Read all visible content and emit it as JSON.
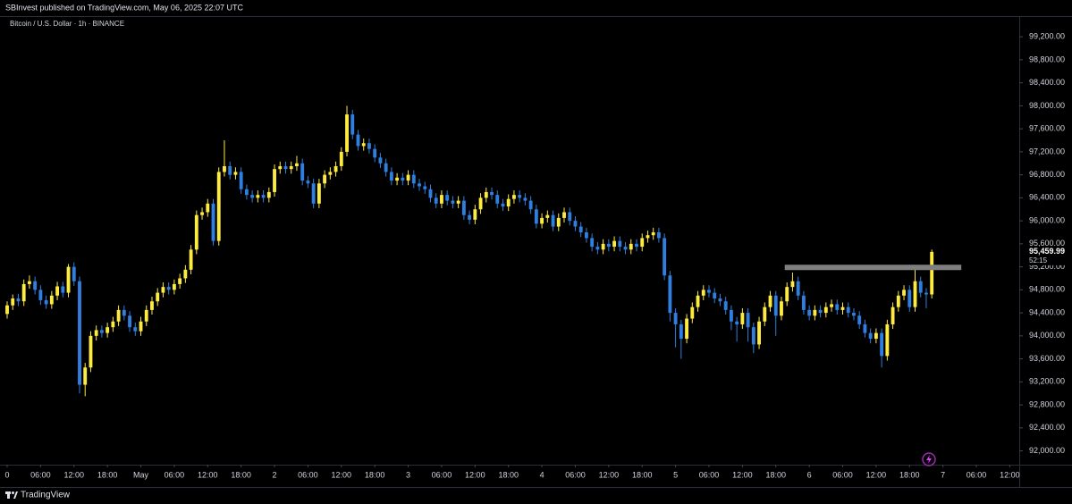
{
  "chart_data": {
    "type": "candlestick",
    "header": "SBInvest published on TradingView.com, May 06, 2025 22:07 UTC",
    "symbol": "Bitcoin / U.S. Dollar · 1h · BINANCE",
    "brand": "TradingView",
    "up_color": "#fdeb3f",
    "down_color": "#2f7fe0",
    "x": [
      0,
      1,
      2,
      3,
      4,
      5,
      6,
      7,
      8,
      9,
      10,
      11,
      12,
      13,
      14,
      15,
      16,
      17,
      18,
      19,
      20,
      21,
      22,
      23,
      24,
      25,
      26,
      27,
      28,
      29,
      30,
      31,
      32,
      33,
      34,
      35,
      36,
      37,
      38,
      39,
      40,
      41,
      42,
      43,
      44,
      45,
      46,
      47,
      48,
      49,
      50,
      51,
      52,
      53,
      54,
      55,
      56,
      57,
      58,
      59,
      60,
      61,
      62,
      63,
      64,
      65,
      66,
      67,
      68,
      69,
      70,
      71,
      72,
      73,
      74,
      75,
      76,
      77,
      78,
      79,
      80,
      81,
      82,
      83,
      84,
      85,
      86,
      87,
      88,
      89,
      90,
      91,
      92,
      93,
      94,
      95,
      96,
      97,
      98,
      99,
      100,
      101,
      102,
      103,
      104,
      105,
      106,
      107,
      108,
      109,
      110,
      111,
      112,
      113,
      114,
      115,
      116,
      117,
      118,
      119,
      120,
      121,
      122,
      123,
      124,
      125,
      126,
      127,
      128,
      129,
      130,
      131,
      132,
      133,
      134,
      135,
      136,
      137,
      138,
      139,
      140,
      141,
      142,
      143,
      144,
      145,
      146,
      147,
      148,
      149,
      150,
      151,
      152,
      153,
      154,
      155,
      156,
      157,
      158,
      159,
      160,
      161,
      162,
      163,
      164,
      165,
      166
    ],
    "ohlc": [
      [
        94380,
        94600,
        94300,
        94530
      ],
      [
        94530,
        94720,
        94450,
        94650
      ],
      [
        94650,
        94730,
        94520,
        94600
      ],
      [
        94600,
        94980,
        94520,
        94900
      ],
      [
        94900,
        95050,
        94820,
        94950
      ],
      [
        94950,
        95030,
        94720,
        94800
      ],
      [
        94800,
        94880,
        94540,
        94620
      ],
      [
        94620,
        94700,
        94470,
        94550
      ],
      [
        94550,
        94780,
        94470,
        94700
      ],
      [
        94700,
        94940,
        94620,
        94860
      ],
      [
        94860,
        94940,
        94670,
        94750
      ],
      [
        94750,
        95250,
        94670,
        95200
      ],
      [
        95200,
        95280,
        94870,
        94950
      ],
      [
        94950,
        95030,
        93000,
        93150
      ],
      [
        93150,
        93530,
        92950,
        93450
      ],
      [
        93450,
        94080,
        93370,
        94000
      ],
      [
        94000,
        94180,
        93920,
        94100
      ],
      [
        94100,
        94180,
        93970,
        94050
      ],
      [
        94050,
        94230,
        93970,
        94150
      ],
      [
        94150,
        94330,
        94070,
        94250
      ],
      [
        94250,
        94530,
        94170,
        94450
      ],
      [
        94450,
        94530,
        94270,
        94350
      ],
      [
        94350,
        94430,
        94070,
        94150
      ],
      [
        94150,
        94230,
        94000,
        94080
      ],
      [
        94080,
        94330,
        94000,
        94250
      ],
      [
        94250,
        94530,
        94170,
        94450
      ],
      [
        94450,
        94680,
        94370,
        94600
      ],
      [
        94600,
        94830,
        94520,
        94750
      ],
      [
        94750,
        94930,
        94670,
        94850
      ],
      [
        94850,
        94930,
        94720,
        94800
      ],
      [
        94800,
        94980,
        94720,
        94900
      ],
      [
        94900,
        95080,
        94820,
        95000
      ],
      [
        95000,
        95230,
        94920,
        95150
      ],
      [
        95150,
        95580,
        95070,
        95500
      ],
      [
        95500,
        96180,
        95420,
        96100
      ],
      [
        96100,
        96230,
        96020,
        96150
      ],
      [
        96150,
        96380,
        96070,
        96300
      ],
      [
        96300,
        96380,
        95570,
        95650
      ],
      [
        95650,
        96930,
        95570,
        96850
      ],
      [
        96850,
        97400,
        96770,
        96950
      ],
      [
        96950,
        97030,
        96720,
        96800
      ],
      [
        96800,
        96930,
        96720,
        96850
      ],
      [
        96850,
        96930,
        96470,
        96550
      ],
      [
        96550,
        96630,
        96370,
        96450
      ],
      [
        96450,
        96530,
        96320,
        96400
      ],
      [
        96400,
        96530,
        96320,
        96450
      ],
      [
        96450,
        96530,
        96320,
        96400
      ],
      [
        96400,
        96580,
        96320,
        96500
      ],
      [
        96500,
        96980,
        96420,
        96900
      ],
      [
        96900,
        97030,
        96820,
        96950
      ],
      [
        96950,
        97030,
        96820,
        96900
      ],
      [
        96900,
        97030,
        96820,
        96950
      ],
      [
        96950,
        97130,
        96870,
        97000
      ],
      [
        97000,
        97080,
        96620,
        96700
      ],
      [
        96700,
        96780,
        96570,
        96650
      ],
      [
        96650,
        96730,
        96220,
        96300
      ],
      [
        96300,
        96730,
        96220,
        96650
      ],
      [
        96650,
        96880,
        96570,
        96800
      ],
      [
        96800,
        96930,
        96720,
        96850
      ],
      [
        96850,
        97030,
        96770,
        96950
      ],
      [
        96950,
        97280,
        96870,
        97200
      ],
      [
        97200,
        98000,
        97120,
        97850
      ],
      [
        97850,
        97930,
        97420,
        97500
      ],
      [
        97500,
        97580,
        97220,
        97300
      ],
      [
        97300,
        97430,
        97220,
        97350
      ],
      [
        97350,
        97430,
        97170,
        97250
      ],
      [
        97250,
        97330,
        97020,
        97100
      ],
      [
        97100,
        97180,
        96920,
        97000
      ],
      [
        97000,
        97080,
        96770,
        96850
      ],
      [
        96850,
        96930,
        96620,
        96700
      ],
      [
        96700,
        96830,
        96620,
        96750
      ],
      [
        96750,
        96830,
        96620,
        96700
      ],
      [
        96700,
        96880,
        96620,
        96800
      ],
      [
        96800,
        96880,
        96570,
        96650
      ],
      [
        96650,
        96730,
        96520,
        96600
      ],
      [
        96600,
        96680,
        96470,
        96550
      ],
      [
        96550,
        96630,
        96320,
        96400
      ],
      [
        96400,
        96480,
        96220,
        96300
      ],
      [
        96300,
        96530,
        96220,
        96450
      ],
      [
        96450,
        96530,
        96270,
        96350
      ],
      [
        96350,
        96430,
        96220,
        96300
      ],
      [
        96300,
        96430,
        96220,
        96350
      ],
      [
        96350,
        96430,
        96020,
        96100
      ],
      [
        96100,
        96180,
        95940,
        96020
      ],
      [
        96020,
        96280,
        95940,
        96200
      ],
      [
        96200,
        96480,
        96120,
        96400
      ],
      [
        96400,
        96580,
        96320,
        96500
      ],
      [
        96500,
        96580,
        96370,
        96450
      ],
      [
        96450,
        96530,
        96220,
        96300
      ],
      [
        96300,
        96380,
        96170,
        96250
      ],
      [
        96250,
        96460,
        96170,
        96380
      ],
      [
        96380,
        96530,
        96300,
        96450
      ],
      [
        96450,
        96530,
        96320,
        96400
      ],
      [
        96400,
        96480,
        96270,
        96350
      ],
      [
        96350,
        96430,
        96120,
        96200
      ],
      [
        96200,
        96280,
        95870,
        95950
      ],
      [
        95950,
        96130,
        95870,
        96050
      ],
      [
        96050,
        96180,
        95970,
        96100
      ],
      [
        96100,
        96180,
        95820,
        95900
      ],
      [
        95900,
        96130,
        95820,
        96050
      ],
      [
        96050,
        96230,
        95970,
        96150
      ],
      [
        96150,
        96230,
        95920,
        96000
      ],
      [
        96000,
        96080,
        95820,
        95900
      ],
      [
        95900,
        95980,
        95720,
        95800
      ],
      [
        95800,
        95880,
        95620,
        95700
      ],
      [
        95700,
        95780,
        95470,
        95550
      ],
      [
        95550,
        95630,
        95420,
        95500
      ],
      [
        95500,
        95680,
        95420,
        95600
      ],
      [
        95600,
        95680,
        95470,
        95550
      ],
      [
        95550,
        95730,
        95470,
        95650
      ],
      [
        95650,
        95730,
        95470,
        95550
      ],
      [
        95550,
        95630,
        95420,
        95500
      ],
      [
        95500,
        95680,
        95420,
        95600
      ],
      [
        95600,
        95680,
        95470,
        95550
      ],
      [
        95550,
        95780,
        95470,
        95700
      ],
      [
        95700,
        95830,
        95620,
        95750
      ],
      [
        95750,
        95880,
        95670,
        95800
      ],
      [
        95800,
        95880,
        95620,
        95700
      ],
      [
        95700,
        95780,
        94970,
        95050
      ],
      [
        95050,
        95130,
        94250,
        94400
      ],
      [
        94400,
        94480,
        93800,
        94200
      ],
      [
        94200,
        94280,
        93600,
        93950
      ],
      [
        93950,
        94380,
        93870,
        94300
      ],
      [
        94300,
        94580,
        94220,
        94500
      ],
      [
        94500,
        94780,
        94420,
        94700
      ],
      [
        94700,
        94880,
        94620,
        94800
      ],
      [
        94800,
        94880,
        94670,
        94750
      ],
      [
        94750,
        94830,
        94570,
        94650
      ],
      [
        94650,
        94730,
        94520,
        94600
      ],
      [
        94600,
        94680,
        94370,
        94450
      ],
      [
        94450,
        94530,
        94100,
        94250
      ],
      [
        94250,
        94330,
        93900,
        94200
      ],
      [
        94200,
        94480,
        94120,
        94400
      ],
      [
        94400,
        94480,
        93900,
        94150
      ],
      [
        94150,
        94230,
        93700,
        93850
      ],
      [
        93850,
        94330,
        93770,
        94250
      ],
      [
        94250,
        94580,
        94170,
        94500
      ],
      [
        94500,
        94780,
        94420,
        94700
      ],
      [
        94700,
        94780,
        94000,
        94350
      ],
      [
        94350,
        94680,
        94270,
        94600
      ],
      [
        94600,
        94930,
        94520,
        94850
      ],
      [
        94850,
        95100,
        94770,
        94950
      ],
      [
        94950,
        95030,
        94620,
        94700
      ],
      [
        94700,
        94780,
        94370,
        94450
      ],
      [
        94450,
        94530,
        94270,
        94350
      ],
      [
        94350,
        94530,
        94270,
        94450
      ],
      [
        94450,
        94530,
        94320,
        94400
      ],
      [
        94400,
        94580,
        94320,
        94500
      ],
      [
        94500,
        94630,
        94420,
        94550
      ],
      [
        94550,
        94630,
        94370,
        94450
      ],
      [
        94450,
        94580,
        94370,
        94500
      ],
      [
        94500,
        94580,
        94320,
        94400
      ],
      [
        94400,
        94480,
        94270,
        94350
      ],
      [
        94350,
        94430,
        94120,
        94200
      ],
      [
        94200,
        94280,
        93970,
        94050
      ],
      [
        94050,
        94130,
        93870,
        93950
      ],
      [
        93950,
        94130,
        93870,
        94050
      ],
      [
        94050,
        94130,
        93450,
        93650
      ],
      [
        93650,
        94280,
        93570,
        94200
      ],
      [
        94200,
        94580,
        94120,
        94500
      ],
      [
        94500,
        94780,
        94420,
        94700
      ],
      [
        94700,
        94880,
        94620,
        94800
      ],
      [
        94800,
        94880,
        94420,
        94500
      ],
      [
        94500,
        95150,
        94420,
        94950
      ],
      [
        94950,
        95030,
        94670,
        94750
      ],
      [
        94750,
        94830,
        94480,
        94720
      ],
      [
        94720,
        95500,
        94650,
        95459.99
      ]
    ],
    "last_price_label": "95,459.99",
    "countdown": "52:15",
    "resistance_zone": {
      "value": 95190,
      "x": [
        139.6,
        171.3
      ],
      "color": "#7f7f7f"
    },
    "xlim": [
      -1.284,
      181.7
    ],
    "xticks": [
      {
        "value": 0,
        "label": "0"
      },
      {
        "value": 6,
        "label": "06:00"
      },
      {
        "value": 12,
        "label": "12:00"
      },
      {
        "value": 18,
        "label": "18:00"
      },
      {
        "value": 24,
        "label": "May"
      },
      {
        "value": 30,
        "label": "06:00"
      },
      {
        "value": 36,
        "label": "12:00"
      },
      {
        "value": 42,
        "label": "18:00"
      },
      {
        "value": 48,
        "label": "2"
      },
      {
        "value": 54,
        "label": "06:00"
      },
      {
        "value": 60,
        "label": "12:00"
      },
      {
        "value": 66,
        "label": "18:00"
      },
      {
        "value": 72,
        "label": "3"
      },
      {
        "value": 78,
        "label": "06:00"
      },
      {
        "value": 84,
        "label": "12:00"
      },
      {
        "value": 90,
        "label": "18:00"
      },
      {
        "value": 96,
        "label": "4"
      },
      {
        "value": 102,
        "label": "06:00"
      },
      {
        "value": 108,
        "label": "12:00"
      },
      {
        "value": 114,
        "label": "18:00"
      },
      {
        "value": 120,
        "label": "5"
      },
      {
        "value": 126,
        "label": "06:00"
      },
      {
        "value": 132,
        "label": "12:00"
      },
      {
        "value": 138,
        "label": "18:00"
      },
      {
        "value": 144,
        "label": "6"
      },
      {
        "value": 150,
        "label": "06:00"
      },
      {
        "value": 156,
        "label": "12:00"
      },
      {
        "value": 162,
        "label": "18:00"
      },
      {
        "value": 168,
        "label": "7"
      },
      {
        "value": 174,
        "label": "06:00"
      },
      {
        "value": 180,
        "label": "12:00"
      }
    ],
    "ylim": [
      91760,
      99560
    ],
    "yticks": [
      {
        "value": 92000,
        "label": "92,000.00"
      },
      {
        "value": 92400,
        "label": "92,400.00"
      },
      {
        "value": 92800,
        "label": "92,800.00"
      },
      {
        "value": 93200,
        "label": "93,200.00"
      },
      {
        "value": 93600,
        "label": "93,600.00"
      },
      {
        "value": 94000,
        "label": "94,000.00"
      },
      {
        "value": 94400,
        "label": "94,400.00"
      },
      {
        "value": 94800,
        "label": "94,800.00"
      },
      {
        "value": 95200,
        "label": "95,200.00"
      },
      {
        "value": 95600,
        "label": "95,600.00"
      },
      {
        "value": 96000,
        "label": "96,000.00"
      },
      {
        "value": 96400,
        "label": "96,400.00"
      },
      {
        "value": 96800,
        "label": "96,800.00"
      },
      {
        "value": 97200,
        "label": "97,200.00"
      },
      {
        "value": 97600,
        "label": "97,600.00"
      },
      {
        "value": 98000,
        "label": "98,000.00"
      },
      {
        "value": 98400,
        "label": "98,400.00"
      },
      {
        "value": 98800,
        "label": "98,800.00"
      },
      {
        "value": 99200,
        "label": "99,200.00"
      }
    ],
    "grid": false
  }
}
